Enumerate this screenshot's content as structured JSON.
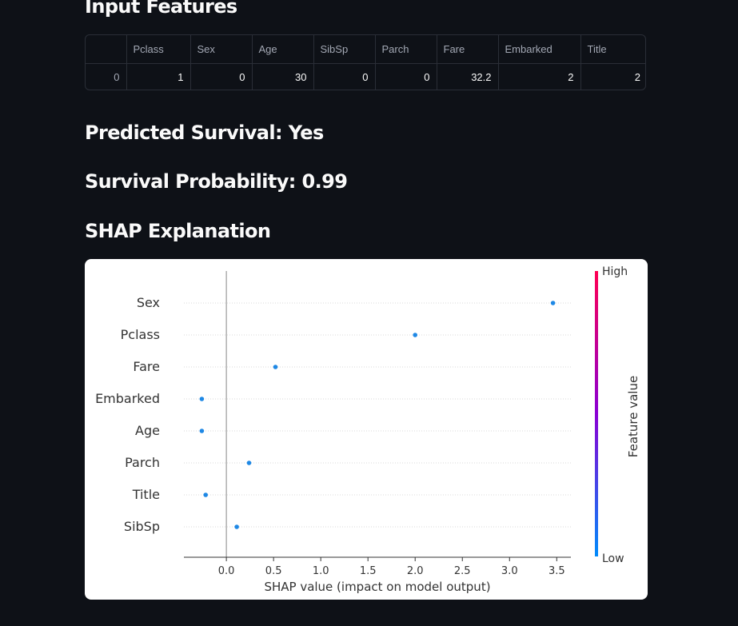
{
  "headings": {
    "input_features": "Input Features",
    "prediction": "Predicted Survival: Yes",
    "probability": "Survival Probability: 0.99",
    "shap": "SHAP Explanation"
  },
  "table": {
    "index_header": "",
    "columns": [
      "Pclass",
      "Sex",
      "Age",
      "SibSp",
      "Parch",
      "Fare",
      "Embarked",
      "Title"
    ],
    "rows": [
      {
        "index": "0",
        "values": [
          "1",
          "0",
          "30",
          "0",
          "0",
          "32.2",
          "2",
          "2"
        ]
      }
    ]
  },
  "chart_data": {
    "type": "scatter",
    "xlabel": "SHAP value (impact on model output)",
    "ylabel": "",
    "xlim": [
      -0.45,
      3.65
    ],
    "x_ticks": [
      0.0,
      0.5,
      1.0,
      1.5,
      2.0,
      2.5,
      3.0,
      3.5
    ],
    "x_tick_labels": [
      "0.0",
      "0.5",
      "1.0",
      "1.5",
      "2.0",
      "2.5",
      "3.0",
      "3.5"
    ],
    "features": [
      "Sex",
      "Pclass",
      "Fare",
      "Embarked",
      "Age",
      "Parch",
      "Title",
      "SibSp"
    ],
    "shap_values": [
      3.46,
      2.0,
      0.52,
      -0.26,
      -0.26,
      0.24,
      -0.22,
      0.11
    ],
    "point_color": "#1e88e5",
    "colorbar": {
      "label": "Feature value",
      "high_label": "High",
      "low_label": "Low",
      "high_color": "#ff0052",
      "mid_color": "#8a00d4",
      "low_color": "#008bfb"
    },
    "zero_line": true,
    "grid": false
  }
}
